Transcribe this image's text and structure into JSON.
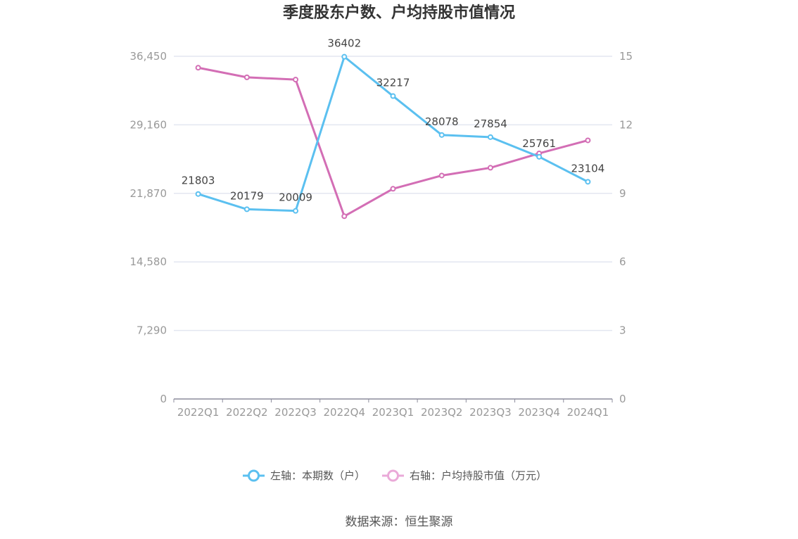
{
  "chart_data": {
    "type": "line",
    "title": "季度股东户数、户均持股市值情况",
    "categories": [
      "2022Q1",
      "2022Q2",
      "2022Q3",
      "2022Q4",
      "2023Q1",
      "2023Q2",
      "2023Q3",
      "2023Q4",
      "2024Q1"
    ],
    "series": [
      {
        "name": "左轴：本期数（户）",
        "axis": "left",
        "color": "#5bc0f0",
        "values": [
          21803,
          20179,
          20009,
          36402,
          32217,
          28078,
          27854,
          25761,
          23104
        ],
        "labels": [
          "21803",
          "20179",
          "20009",
          "36402",
          "32217",
          "28078",
          "27854",
          "25761",
          "23104"
        ]
      },
      {
        "name": "右轴：户均持股市值（万元）",
        "axis": "right",
        "color": "#d36eb5",
        "values": [
          14.5,
          14.08,
          13.98,
          8.0,
          9.2,
          9.78,
          10.12,
          10.75,
          11.32
        ]
      }
    ],
    "left_axis": {
      "ylim": [
        0,
        36450
      ],
      "ticks": [
        "0",
        "7,290",
        "14,580",
        "21,870",
        "29,160",
        "36,450"
      ]
    },
    "right_axis": {
      "ylim": [
        0,
        15
      ],
      "ticks": [
        "0",
        "3",
        "6",
        "9",
        "12",
        "15"
      ]
    },
    "grid": true,
    "legend_position": "bottom"
  },
  "source": "数据来源：恒生聚源"
}
